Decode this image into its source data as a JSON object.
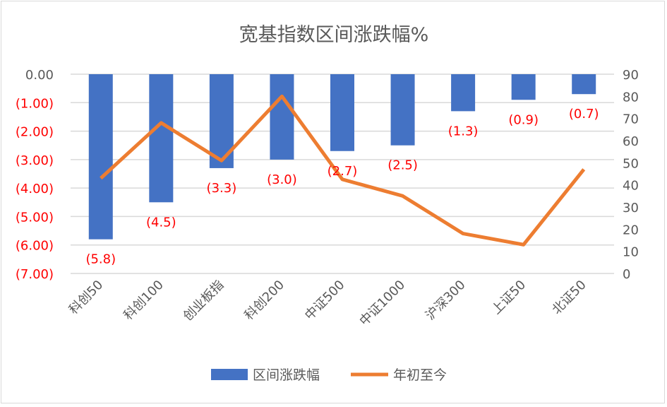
{
  "chart_data": {
    "type": "bar+line",
    "title": "宽基指数区间涨跌幅%",
    "categories": [
      "科创50",
      "科创100",
      "创业板指",
      "科创200",
      "中证500",
      "中证1000",
      "沪深300",
      "上证50",
      "北证50"
    ],
    "series": [
      {
        "name": "区间涨跌幅",
        "type": "bar",
        "axis": "left",
        "color": "#4472C4",
        "values": [
          -5.8,
          -4.5,
          -3.3,
          -3.0,
          -2.7,
          -2.5,
          -1.3,
          -0.9,
          -0.7
        ],
        "labels": [
          "(5.8)",
          "(4.5)",
          "(3.3)",
          "(3.0)",
          "(2.7)",
          "(2.5)",
          "(1.3)",
          "(0.9)",
          "(0.7)"
        ]
      },
      {
        "name": "年初至今",
        "type": "line",
        "axis": "right",
        "color": "#ED7D31",
        "values": [
          43,
          68,
          51,
          80,
          42.5,
          35,
          18,
          13,
          47
        ]
      }
    ],
    "left_axis": {
      "ylim": [
        -7,
        0
      ],
      "ticks": [
        "0.00",
        "(1.00)",
        "(2.00)",
        "(3.00)",
        "(4.00)",
        "(5.00)",
        "(6.00)",
        "(7.00)"
      ]
    },
    "right_axis": {
      "ylim": [
        0,
        90
      ],
      "ticks": [
        "90",
        "80",
        "70",
        "60",
        "50",
        "40",
        "30",
        "20",
        "10",
        "0"
      ]
    },
    "grid": true,
    "legend": "bottom",
    "colors": {
      "negative_label": "#FF0000",
      "axis_text": "#595959",
      "grid": "#D9D9D9"
    }
  }
}
